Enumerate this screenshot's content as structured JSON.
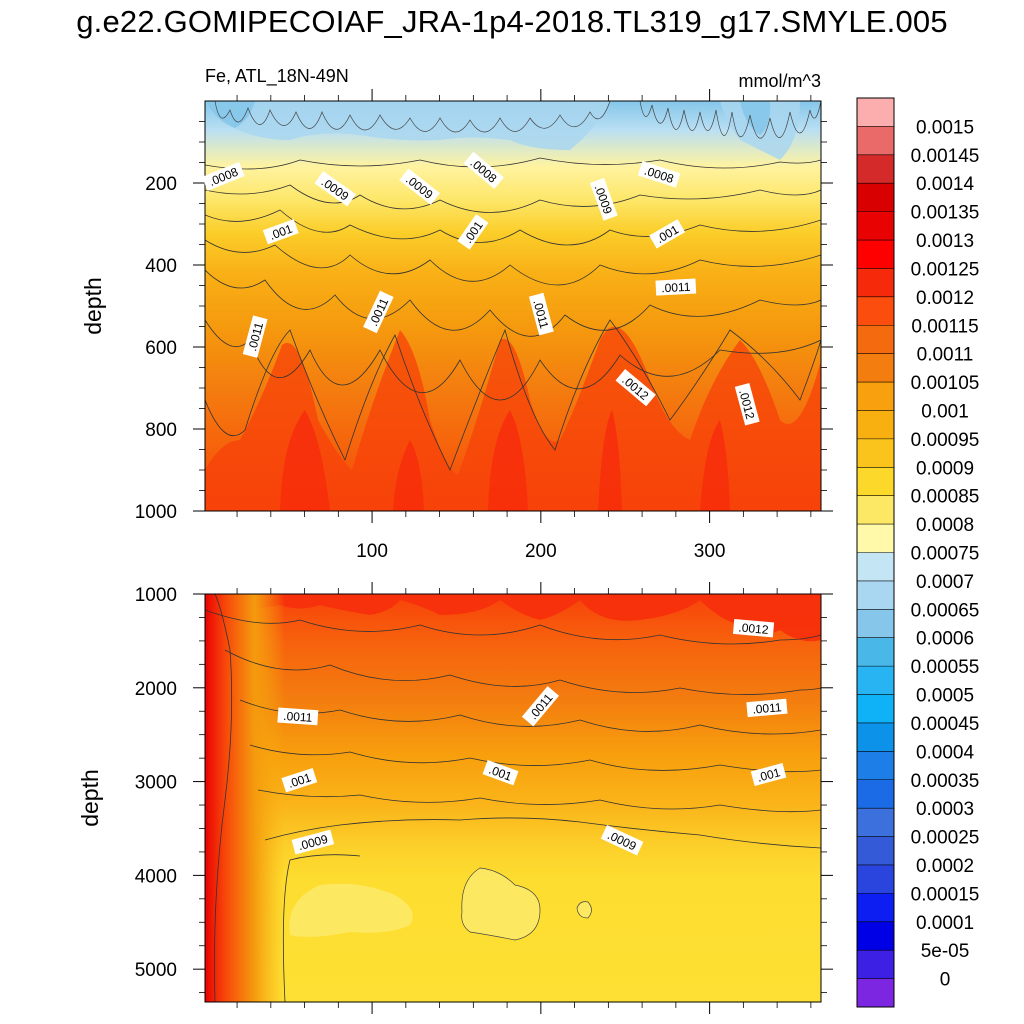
{
  "title": "g.e22.GOMIPECOIAF_JRA-1p4-2018.TL319_g17.SMYLE.005",
  "chart_data": [
    {
      "type": "heatmap",
      "panel": "upper",
      "left_label": "Fe, ATL_18N-49N",
      "right_label": "mmol/m^3",
      "ylabel": "depth",
      "xlabel": "",
      "x_range": [
        1,
        366
      ],
      "y_range": [
        0,
        1000
      ],
      "y_inverted": true,
      "xticks": [
        100,
        200,
        300
      ],
      "yticks": [
        200,
        400,
        600,
        800,
        1000
      ],
      "contour_labels": [
        {
          "text": ".0008",
          "x": 12,
          "y": 185,
          "angle": -22
        },
        {
          "text": ".0009",
          "x": 78,
          "y": 215,
          "angle": 35
        },
        {
          "text": ".0009",
          "x": 128,
          "y": 210,
          "angle": 38
        },
        {
          "text": ".0008",
          "x": 166,
          "y": 170,
          "angle": 40
        },
        {
          "text": ".001",
          "x": 46,
          "y": 320,
          "angle": -20
        },
        {
          "text": ".001",
          "x": 160,
          "y": 320,
          "angle": -55
        },
        {
          "text": ".0009",
          "x": 237,
          "y": 240,
          "angle": 70
        },
        {
          "text": ".0008",
          "x": 270,
          "y": 180,
          "angle": 18
        },
        {
          "text": ".001",
          "x": 275,
          "y": 325,
          "angle": -30
        },
        {
          "text": ".0011",
          "x": 280,
          "y": 455,
          "angle": -3
        },
        {
          "text": ".0011",
          "x": 31,
          "y": 575,
          "angle": -75
        },
        {
          "text": ".0011",
          "x": 104,
          "y": 515,
          "angle": -65
        },
        {
          "text": ".0011",
          "x": 200,
          "y": 520,
          "angle": 75
        },
        {
          "text": ".0012",
          "x": 256,
          "y": 700,
          "angle": 40
        },
        {
          "text": ".0012",
          "x": 322,
          "y": 740,
          "angle": 75
        }
      ]
    },
    {
      "type": "heatmap",
      "panel": "lower",
      "ylabel": "depth",
      "xlabel": "",
      "x_range": [
        1,
        366
      ],
      "y_range": [
        1000,
        5350
      ],
      "y_inverted": true,
      "xticks": [
        100,
        200,
        300
      ],
      "yticks": [
        1000,
        2000,
        3000,
        4000,
        5000
      ],
      "contour_labels": [
        {
          "text": ".0012",
          "x": 326,
          "y": 1370,
          "angle": 5
        },
        {
          "text": ".0011",
          "x": 56,
          "y": 2310,
          "angle": 4
        },
        {
          "text": ".0011",
          "x": 200,
          "y": 2200,
          "angle": -50
        },
        {
          "text": ".0011",
          "x": 334,
          "y": 2220,
          "angle": -5
        },
        {
          "text": ".001",
          "x": 57,
          "y": 2990,
          "angle": -18
        },
        {
          "text": ".001",
          "x": 176,
          "y": 2910,
          "angle": 20
        },
        {
          "text": ".001",
          "x": 335,
          "y": 2930,
          "angle": -15
        },
        {
          "text": ".0009",
          "x": 65,
          "y": 3650,
          "angle": -15
        },
        {
          "text": ".0009",
          "x": 248,
          "y": 3630,
          "angle": 25
        }
      ]
    }
  ],
  "colorbar": {
    "labels": [
      "0.0015",
      "0.00145",
      "0.0014",
      "0.00135",
      "0.0013",
      "0.00125",
      "0.0012",
      "0.00115",
      "0.0011",
      "0.00105",
      "0.001",
      "0.00095",
      "0.0009",
      "0.00085",
      "0.0008",
      "0.00075",
      "0.0007",
      "0.00065",
      "0.0006",
      "0.00055",
      "0.0005",
      "0.00045",
      "0.0004",
      "0.00035",
      "0.0003",
      "0.00025",
      "0.0002",
      "0.00015",
      "0.0001",
      "5e-05",
      "0"
    ],
    "colors": [
      "#fbaead",
      "#ea6a6a",
      "#d52a2a",
      "#d80000",
      "#e80202",
      "#fe0000",
      "#f7290b",
      "#fb4d0d",
      "#f36b0e",
      "#f47d0f",
      "#f8a00d",
      "#f8b010",
      "#fbc41c",
      "#fcd82b",
      "#fde865",
      "#fff9a9",
      "#c4e5f4",
      "#a9d6f0",
      "#85c6ea",
      "#49b7e8",
      "#28b4f2",
      "#0fb2f6",
      "#0d92ea",
      "#1d7ee7",
      "#1a6be5",
      "#3b70dd",
      "#345ad8",
      "#2945de",
      "#0c1ef1",
      "#0000e6",
      "#3c20e4",
      "#7d26e2"
    ]
  }
}
